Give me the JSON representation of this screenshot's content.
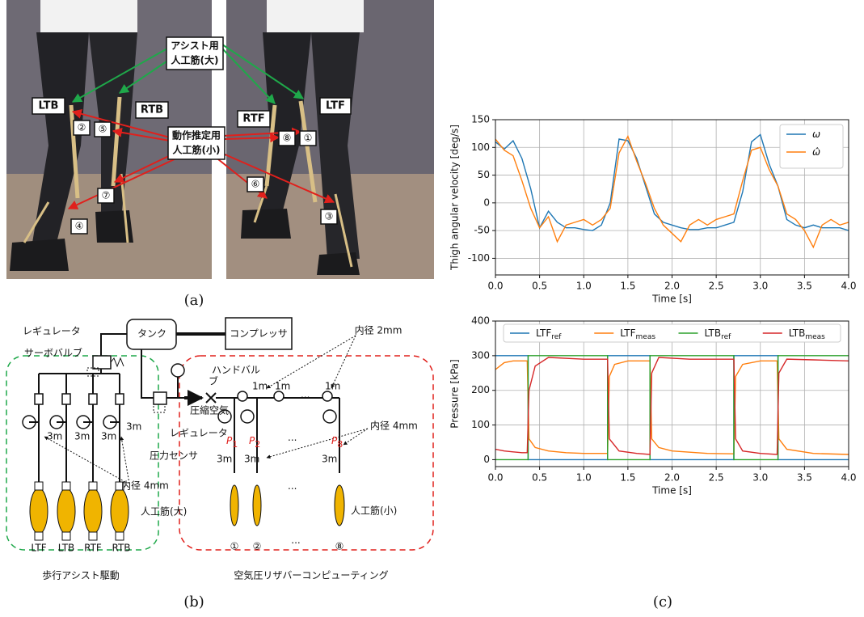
{
  "panel_a": {
    "caption": "(a)",
    "limb_labels": [
      "LTB",
      "RTB",
      "RTF",
      "LTF"
    ],
    "assist_muscle": [
      "アシスト用",
      "人工筋(大)"
    ],
    "estimation_muscle": [
      "動作推定用",
      "人工筋(小)"
    ],
    "muscle_numbers": [
      "②",
      "⑤",
      "⑦",
      "④",
      "⑧",
      "①",
      "⑥",
      "③"
    ]
  },
  "panel_b": {
    "caption": "(b)",
    "regulator_top": "レギュレータ",
    "servo_valve": "サーボバルブ",
    "tank": "タンク",
    "compressor": "コンプレッサ",
    "inner_diameter_2mm": "内径 2mm",
    "hand_valve": [
      "ハンドバル",
      "ブ"
    ],
    "compressed_air": "圧縮空気",
    "regulator": "レギュレータ",
    "pressure_sensor": "圧力センサ",
    "sensor_symbol": "P",
    "sensor_subs": [
      "1",
      "2",
      "8"
    ],
    "ellipsis": "···",
    "length_1m": "1m",
    "length_3m": "3m",
    "inner_diameter_4mm": "内径 4mm",
    "large_muscle": "人工筋(大)",
    "small_muscle": "人工筋(小)",
    "assist_muscles": [
      "LTF",
      "LTB",
      "RTF",
      "RTB"
    ],
    "sensing_muscles": [
      "①",
      "②",
      "⑧"
    ],
    "assist_group": "歩行アシスト駆動",
    "reservoir_group": "空気圧リザバーコンピューティング"
  },
  "panel_c_caption": "(c)",
  "chart_data": [
    {
      "type": "line",
      "ylabel": "Thigh angular velocity [deg/s]",
      "xlabel": "Time [s]",
      "xlim": [
        0,
        4
      ],
      "ylim": [
        -130,
        150
      ],
      "xticks": [
        {
          "value": 0,
          "label": "0.0"
        },
        {
          "value": 0.5,
          "label": "0.5"
        },
        {
          "value": 1,
          "label": "1.0"
        },
        {
          "value": 1.5,
          "label": "1.5"
        },
        {
          "value": 2,
          "label": "2.0"
        },
        {
          "value": 2.5,
          "label": "2.5"
        },
        {
          "value": 3,
          "label": "3.0"
        },
        {
          "value": 3.5,
          "label": "3.5"
        },
        {
          "value": 4,
          "label": "4.0"
        }
      ],
      "yticks": [
        -100,
        -50,
        0,
        50,
        100,
        150
      ],
      "grid": true,
      "legend": "upper right",
      "x": [
        0,
        0.1,
        0.2,
        0.3,
        0.4,
        0.5,
        0.6,
        0.7,
        0.8,
        0.9,
        1.0,
        1.1,
        1.2,
        1.3,
        1.4,
        1.5,
        1.6,
        1.7,
        1.8,
        1.9,
        2.0,
        2.1,
        2.2,
        2.3,
        2.4,
        2.5,
        2.6,
        2.7,
        2.8,
        2.9,
        3.0,
        3.1,
        3.2,
        3.3,
        3.4,
        3.5,
        3.6,
        3.7,
        3.8,
        3.9,
        4.0
      ],
      "series": [
        {
          "name": "ω",
          "color": "#1f77b4",
          "values": [
            110,
            97,
            112,
            80,
            25,
            -45,
            -15,
            -35,
            -45,
            -45,
            -48,
            -50,
            -40,
            0,
            115,
            112,
            80,
            30,
            -20,
            -35,
            -40,
            -45,
            -48,
            -48,
            -45,
            -45,
            -40,
            -35,
            20,
            110,
            123,
            70,
            30,
            -30,
            -40,
            -45,
            -40,
            -45,
            -45,
            -45,
            -50
          ]
        },
        {
          "name": "ω̂",
          "color": "#ff7f0e",
          "values": [
            115,
            95,
            85,
            40,
            -10,
            -45,
            -25,
            -70,
            -40,
            -35,
            -30,
            -40,
            -30,
            -10,
            90,
            120,
            75,
            35,
            -10,
            -40,
            -55,
            -70,
            -40,
            -30,
            -40,
            -30,
            -25,
            -20,
            40,
            95,
            100,
            60,
            30,
            -20,
            -30,
            -50,
            -80,
            -40,
            -30,
            -40,
            -35
          ]
        }
      ]
    },
    {
      "type": "line",
      "ylabel": "Pressure [kPa]",
      "xlabel": "Time [s]",
      "xlim": [
        0,
        4
      ],
      "ylim": [
        -20,
        400
      ],
      "xticks": [
        {
          "value": 0,
          "label": "0.0"
        },
        {
          "value": 0.5,
          "label": "0.5"
        },
        {
          "value": 1,
          "label": "1.0"
        },
        {
          "value": 1.5,
          "label": "1.5"
        },
        {
          "value": 2,
          "label": "2.0"
        },
        {
          "value": 2.5,
          "label": "2.5"
        },
        {
          "value": 3,
          "label": "3.0"
        },
        {
          "value": 3.5,
          "label": "3.5"
        },
        {
          "value": 4,
          "label": "4.0"
        }
      ],
      "yticks": [
        0,
        100,
        200,
        300,
        400
      ],
      "grid": true,
      "legend": "upper center",
      "series": [
        {
          "name": "LTF",
          "name_sub": "ref",
          "color": "#1f77b4",
          "x": [
            0,
            0.37,
            0.37,
            1.27,
            1.27,
            1.75,
            1.75,
            2.7,
            2.7,
            3.2,
            3.2,
            4.0
          ],
          "values": [
            300,
            300,
            0,
            0,
            300,
            300,
            0,
            0,
            300,
            300,
            0,
            0
          ]
        },
        {
          "name": "LTF",
          "name_sub": "meas",
          "color": "#ff7f0e",
          "x": [
            0,
            0.05,
            0.1,
            0.2,
            0.3,
            0.36,
            0.38,
            0.45,
            0.6,
            0.8,
            1.0,
            1.27,
            1.29,
            1.35,
            1.5,
            1.75,
            1.77,
            1.85,
            2.0,
            2.4,
            2.7,
            2.72,
            2.8,
            3.0,
            3.19,
            3.21,
            3.3,
            3.6,
            4.0
          ],
          "values": [
            260,
            270,
            280,
            285,
            285,
            285,
            60,
            35,
            25,
            20,
            18,
            18,
            240,
            275,
            285,
            285,
            60,
            35,
            25,
            18,
            17,
            240,
            275,
            285,
            285,
            60,
            30,
            18,
            15
          ]
        },
        {
          "name": "LTB",
          "name_sub": "ref",
          "color": "#2ca02c",
          "x": [
            0,
            0.37,
            0.37,
            1.27,
            1.27,
            1.75,
            1.75,
            2.7,
            2.7,
            3.2,
            3.2,
            4.0
          ],
          "values": [
            0,
            0,
            300,
            300,
            0,
            0,
            300,
            300,
            0,
            0,
            300,
            300
          ]
        },
        {
          "name": "LTB",
          "name_sub": "meas",
          "color": "#d62728",
          "x": [
            0,
            0.1,
            0.3,
            0.36,
            0.38,
            0.45,
            0.6,
            1.0,
            1.27,
            1.29,
            1.4,
            1.6,
            1.75,
            1.77,
            1.85,
            2.2,
            2.7,
            2.72,
            2.8,
            3.0,
            3.19,
            3.21,
            3.3,
            3.6,
            4.0
          ],
          "values": [
            30,
            25,
            20,
            20,
            200,
            270,
            295,
            290,
            290,
            60,
            25,
            18,
            15,
            250,
            295,
            290,
            290,
            60,
            25,
            18,
            15,
            250,
            290,
            288,
            285
          ]
        }
      ]
    }
  ]
}
